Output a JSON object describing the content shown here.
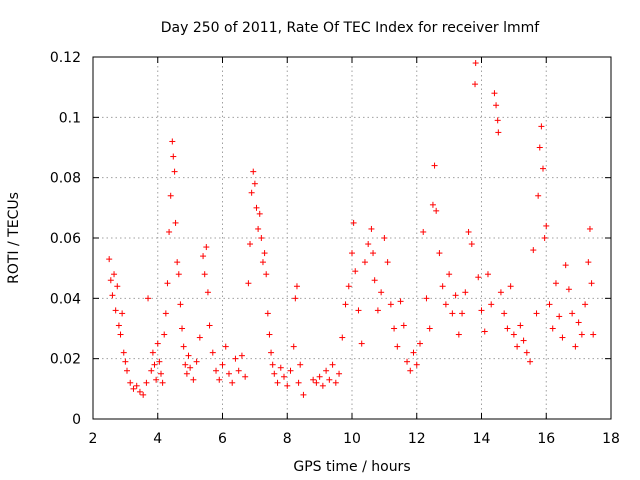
{
  "chart_data": {
    "type": "scatter",
    "title": "Day 250 of 2011, Rate Of TEC Index for receiver lmmf",
    "xlabel": "GPS time / hours",
    "ylabel": "ROTI / TECUs",
    "xlim": [
      2,
      18
    ],
    "ylim": [
      0,
      0.12
    ],
    "xticks": [
      2,
      4,
      6,
      8,
      10,
      12,
      14,
      16,
      18
    ],
    "xtick_labels": [
      "2",
      "4",
      "6",
      "8",
      "10",
      "12",
      "14",
      "16",
      "18"
    ],
    "yticks": [
      0,
      0.02,
      0.04,
      0.06,
      0.08,
      0.1,
      0.12
    ],
    "ytick_labels": [
      "0",
      "0.02",
      "0.04",
      "0.06",
      "0.08",
      "0.1",
      "0.12"
    ],
    "grid": true,
    "marker": "+",
    "color": "#ff0000",
    "series": [
      {
        "name": "ROTI",
        "points": [
          [
            2.5,
            0.053
          ],
          [
            2.55,
            0.046
          ],
          [
            2.6,
            0.041
          ],
          [
            2.65,
            0.048
          ],
          [
            2.7,
            0.036
          ],
          [
            2.75,
            0.044
          ],
          [
            2.8,
            0.031
          ],
          [
            2.85,
            0.028
          ],
          [
            2.9,
            0.035
          ],
          [
            2.95,
            0.022
          ],
          [
            3.0,
            0.019
          ],
          [
            3.05,
            0.016
          ],
          [
            3.15,
            0.012
          ],
          [
            3.25,
            0.01
          ],
          [
            3.35,
            0.011
          ],
          [
            3.45,
            0.009
          ],
          [
            3.55,
            0.008
          ],
          [
            3.65,
            0.012
          ],
          [
            3.7,
            0.04
          ],
          [
            3.8,
            0.016
          ],
          [
            3.85,
            0.022
          ],
          [
            3.9,
            0.018
          ],
          [
            3.95,
            0.013
          ],
          [
            4.0,
            0.025
          ],
          [
            4.05,
            0.019
          ],
          [
            4.1,
            0.015
          ],
          [
            4.15,
            0.012
          ],
          [
            4.2,
            0.028
          ],
          [
            4.25,
            0.035
          ],
          [
            4.3,
            0.045
          ],
          [
            4.35,
            0.062
          ],
          [
            4.4,
            0.074
          ],
          [
            4.45,
            0.092
          ],
          [
            4.48,
            0.087
          ],
          [
            4.52,
            0.082
          ],
          [
            4.55,
            0.065
          ],
          [
            4.6,
            0.052
          ],
          [
            4.65,
            0.048
          ],
          [
            4.7,
            0.038
          ],
          [
            4.75,
            0.03
          ],
          [
            4.8,
            0.024
          ],
          [
            4.85,
            0.018
          ],
          [
            4.9,
            0.015
          ],
          [
            4.95,
            0.021
          ],
          [
            5.0,
            0.017
          ],
          [
            5.1,
            0.013
          ],
          [
            5.2,
            0.019
          ],
          [
            5.3,
            0.027
          ],
          [
            5.4,
            0.054
          ],
          [
            5.45,
            0.048
          ],
          [
            5.5,
            0.057
          ],
          [
            5.55,
            0.042
          ],
          [
            5.6,
            0.031
          ],
          [
            5.7,
            0.022
          ],
          [
            5.8,
            0.016
          ],
          [
            5.9,
            0.013
          ],
          [
            6.0,
            0.018
          ],
          [
            6.1,
            0.024
          ],
          [
            6.2,
            0.015
          ],
          [
            6.3,
            0.012
          ],
          [
            6.4,
            0.02
          ],
          [
            6.5,
            0.016
          ],
          [
            6.6,
            0.021
          ],
          [
            6.7,
            0.014
          ],
          [
            6.8,
            0.045
          ],
          [
            6.85,
            0.058
          ],
          [
            6.9,
            0.075
          ],
          [
            6.95,
            0.082
          ],
          [
            7.0,
            0.078
          ],
          [
            7.05,
            0.07
          ],
          [
            7.1,
            0.063
          ],
          [
            7.15,
            0.068
          ],
          [
            7.2,
            0.06
          ],
          [
            7.25,
            0.052
          ],
          [
            7.3,
            0.055
          ],
          [
            7.35,
            0.048
          ],
          [
            7.4,
            0.035
          ],
          [
            7.45,
            0.028
          ],
          [
            7.5,
            0.022
          ],
          [
            7.55,
            0.018
          ],
          [
            7.6,
            0.015
          ],
          [
            7.7,
            0.012
          ],
          [
            7.8,
            0.017
          ],
          [
            7.9,
            0.014
          ],
          [
            8.0,
            0.011
          ],
          [
            8.1,
            0.016
          ],
          [
            8.2,
            0.024
          ],
          [
            8.25,
            0.04
          ],
          [
            8.3,
            0.044
          ],
          [
            8.35,
            0.012
          ],
          [
            8.4,
            0.018
          ],
          [
            8.5,
            0.008
          ],
          [
            8.8,
            0.013
          ],
          [
            8.9,
            0.012
          ],
          [
            9.0,
            0.014
          ],
          [
            9.1,
            0.011
          ],
          [
            9.2,
            0.016
          ],
          [
            9.3,
            0.013
          ],
          [
            9.4,
            0.018
          ],
          [
            9.5,
            0.012
          ],
          [
            9.6,
            0.015
          ],
          [
            9.7,
            0.027
          ],
          [
            9.8,
            0.038
          ],
          [
            9.9,
            0.044
          ],
          [
            10.0,
            0.055
          ],
          [
            10.05,
            0.065
          ],
          [
            10.1,
            0.049
          ],
          [
            10.2,
            0.036
          ],
          [
            10.3,
            0.025
          ],
          [
            10.4,
            0.052
          ],
          [
            10.5,
            0.058
          ],
          [
            10.6,
            0.063
          ],
          [
            10.65,
            0.055
          ],
          [
            10.7,
            0.046
          ],
          [
            10.8,
            0.036
          ],
          [
            10.9,
            0.042
          ],
          [
            11.0,
            0.06
          ],
          [
            11.1,
            0.052
          ],
          [
            11.2,
            0.038
          ],
          [
            11.3,
            0.03
          ],
          [
            11.4,
            0.024
          ],
          [
            11.5,
            0.039
          ],
          [
            11.6,
            0.031
          ],
          [
            11.7,
            0.019
          ],
          [
            11.8,
            0.016
          ],
          [
            11.9,
            0.022
          ],
          [
            12.0,
            0.018
          ],
          [
            12.1,
            0.025
          ],
          [
            12.2,
            0.062
          ],
          [
            12.3,
            0.04
          ],
          [
            12.4,
            0.03
          ],
          [
            12.5,
            0.071
          ],
          [
            12.55,
            0.084
          ],
          [
            12.6,
            0.069
          ],
          [
            12.7,
            0.055
          ],
          [
            12.8,
            0.044
          ],
          [
            12.9,
            0.038
          ],
          [
            13.0,
            0.048
          ],
          [
            13.1,
            0.035
          ],
          [
            13.2,
            0.041
          ],
          [
            13.3,
            0.028
          ],
          [
            13.4,
            0.035
          ],
          [
            13.5,
            0.042
          ],
          [
            13.6,
            0.062
          ],
          [
            13.7,
            0.058
          ],
          [
            13.8,
            0.111
          ],
          [
            13.82,
            0.118
          ],
          [
            13.9,
            0.047
          ],
          [
            14.0,
            0.036
          ],
          [
            14.1,
            0.029
          ],
          [
            14.2,
            0.048
          ],
          [
            14.3,
            0.038
          ],
          [
            14.4,
            0.108
          ],
          [
            14.45,
            0.104
          ],
          [
            14.5,
            0.099
          ],
          [
            14.52,
            0.095
          ],
          [
            14.6,
            0.042
          ],
          [
            14.7,
            0.035
          ],
          [
            14.8,
            0.03
          ],
          [
            14.9,
            0.044
          ],
          [
            15.0,
            0.028
          ],
          [
            15.1,
            0.024
          ],
          [
            15.2,
            0.031
          ],
          [
            15.3,
            0.026
          ],
          [
            15.4,
            0.022
          ],
          [
            15.5,
            0.019
          ],
          [
            15.6,
            0.056
          ],
          [
            15.7,
            0.035
          ],
          [
            15.75,
            0.074
          ],
          [
            15.8,
            0.09
          ],
          [
            15.85,
            0.097
          ],
          [
            15.9,
            0.083
          ],
          [
            15.95,
            0.06
          ],
          [
            16.0,
            0.064
          ],
          [
            16.1,
            0.038
          ],
          [
            16.2,
            0.03
          ],
          [
            16.3,
            0.045
          ],
          [
            16.4,
            0.034
          ],
          [
            16.5,
            0.027
          ],
          [
            16.6,
            0.051
          ],
          [
            16.7,
            0.043
          ],
          [
            16.8,
            0.035
          ],
          [
            16.9,
            0.024
          ],
          [
            17.0,
            0.032
          ],
          [
            17.1,
            0.028
          ],
          [
            17.2,
            0.038
          ],
          [
            17.3,
            0.052
          ],
          [
            17.35,
            0.063
          ],
          [
            17.4,
            0.045
          ],
          [
            17.45,
            0.028
          ]
        ]
      }
    ]
  }
}
